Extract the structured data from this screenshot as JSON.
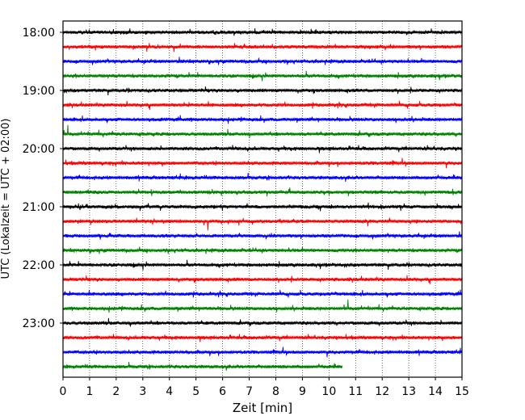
{
  "chart_data": {
    "type": "line",
    "title": "",
    "xlabel": "Zeit  [min]",
    "ylabel": "UTC (Lokalzeit = UTC + 02:00)",
    "xlim": [
      0,
      15
    ],
    "x_ticks": [
      "0",
      "1",
      "2",
      "3",
      "4",
      "5",
      "6",
      "7",
      "8",
      "9",
      "10",
      "11",
      "12",
      "13",
      "14",
      "15"
    ],
    "y_ticks": [
      "18:00",
      "19:00",
      "20:00",
      "21:00",
      "22:00",
      "23:00"
    ],
    "grid": "vertical dotted",
    "trace_minutes_per_row": 15,
    "trace_color_cycle": [
      "#000000",
      "#ff0000",
      "#0000ff",
      "#008000"
    ],
    "series": [
      {
        "row_start": "18:00",
        "color": "#000000",
        "duration_min": 15
      },
      {
        "row_start": "18:15",
        "color": "#ff0000",
        "duration_min": 15
      },
      {
        "row_start": "18:30",
        "color": "#0000ff",
        "duration_min": 15
      },
      {
        "row_start": "18:45",
        "color": "#008000",
        "duration_min": 15
      },
      {
        "row_start": "19:00",
        "color": "#000000",
        "duration_min": 15
      },
      {
        "row_start": "19:15",
        "color": "#ff0000",
        "duration_min": 15
      },
      {
        "row_start": "19:30",
        "color": "#0000ff",
        "duration_min": 15
      },
      {
        "row_start": "19:45",
        "color": "#008000",
        "duration_min": 15
      },
      {
        "row_start": "20:00",
        "color": "#000000",
        "duration_min": 15
      },
      {
        "row_start": "20:15",
        "color": "#ff0000",
        "duration_min": 15
      },
      {
        "row_start": "20:30",
        "color": "#0000ff",
        "duration_min": 15
      },
      {
        "row_start": "20:45",
        "color": "#008000",
        "duration_min": 15
      },
      {
        "row_start": "21:00",
        "color": "#000000",
        "duration_min": 15
      },
      {
        "row_start": "21:15",
        "color": "#ff0000",
        "duration_min": 15
      },
      {
        "row_start": "21:30",
        "color": "#0000ff",
        "duration_min": 15
      },
      {
        "row_start": "21:45",
        "color": "#008000",
        "duration_min": 15
      },
      {
        "row_start": "22:00",
        "color": "#000000",
        "duration_min": 15
      },
      {
        "row_start": "22:15",
        "color": "#ff0000",
        "duration_min": 15
      },
      {
        "row_start": "22:30",
        "color": "#0000ff",
        "duration_min": 15
      },
      {
        "row_start": "22:45",
        "color": "#008000",
        "duration_min": 15
      },
      {
        "row_start": "23:00",
        "color": "#000000",
        "duration_min": 15
      },
      {
        "row_start": "23:15",
        "color": "#ff0000",
        "duration_min": 15
      },
      {
        "row_start": "23:30",
        "color": "#0000ff",
        "duration_min": 15
      },
      {
        "row_start": "23:45",
        "color": "#008000",
        "duration_min": 10.5
      }
    ]
  }
}
